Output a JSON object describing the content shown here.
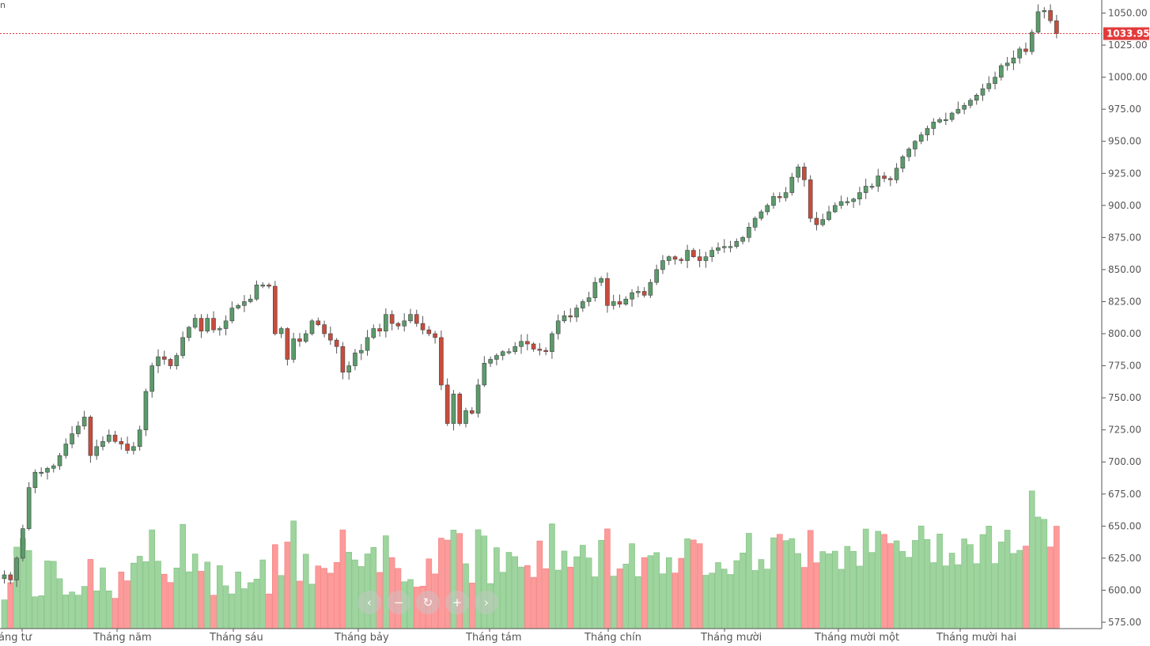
{
  "corner_text": "n",
  "nav_buttons": [
    {
      "name": "scroll-left-button",
      "icon": "chevron-left-icon",
      "glyph": "‹"
    },
    {
      "name": "zoom-out-button",
      "icon": "minus-icon",
      "glyph": "−"
    },
    {
      "name": "reset-button",
      "icon": "refresh-icon",
      "glyph": "↻"
    },
    {
      "name": "zoom-in-button",
      "icon": "plus-icon",
      "glyph": "+"
    },
    {
      "name": "scroll-right-button",
      "icon": "chevron-right-icon",
      "glyph": "›"
    }
  ],
  "chart_data": {
    "type": "candlestick-with-volume",
    "title": "",
    "xlabel": "",
    "ylabel": "",
    "ylim": [
      572,
      1058
    ],
    "y_ticks": [
      "575.00",
      "600.00",
      "625.00",
      "650.00",
      "675.00",
      "700.00",
      "725.00",
      "750.00",
      "775.00",
      "800.00",
      "825.00",
      "850.00",
      "875.00",
      "900.00",
      "925.00",
      "950.00",
      "975.00",
      "1000.00",
      "1025.00",
      "1050.00"
    ],
    "month_labels": [
      "áng tư",
      "Tháng năm",
      "Tháng sáu",
      "Tháng bảy",
      "Tháng tám",
      "Tháng chín",
      "Tháng mười",
      "Tháng mười một",
      "Tháng mười hai"
    ],
    "current_price": 1033.95,
    "colors": {
      "up": "#5b9b6b",
      "down": "#c84c3c",
      "volume_up": "#9ed49e",
      "volume_down": "#fd9a9a",
      "price_line": "#e23b3b",
      "grid_axis": "#555555"
    },
    "closes": [
      612,
      608,
      625,
      648,
      680,
      692,
      692,
      695,
      697,
      705,
      714,
      722,
      728,
      735,
      705,
      712,
      716,
      721,
      716,
      714,
      709,
      712,
      725,
      755,
      775,
      782,
      780,
      775,
      783,
      797,
      805,
      812,
      802,
      812,
      803,
      804,
      810,
      820,
      822,
      825,
      827,
      838,
      838,
      837,
      800,
      804,
      780,
      796,
      794,
      800,
      810,
      807,
      800,
      795,
      790,
      770,
      775,
      785,
      787,
      797,
      804,
      802,
      815,
      808,
      806,
      810,
      815,
      808,
      803,
      800,
      797,
      760,
      730,
      753,
      730,
      740,
      738,
      760,
      777,
      780,
      783,
      786,
      786,
      790,
      794,
      792,
      788,
      787,
      786,
      800,
      810,
      814,
      813,
      820,
      825,
      828,
      840,
      843,
      822,
      825,
      823,
      827,
      832,
      833,
      830,
      840,
      850,
      857,
      860,
      858,
      857,
      865,
      860,
      857,
      860,
      865,
      867,
      868,
      868,
      872,
      875,
      883,
      890,
      895,
      900,
      907,
      906,
      910,
      922,
      930,
      920,
      890,
      885,
      889,
      895,
      900,
      903,
      903,
      905,
      910,
      915,
      915,
      923,
      921,
      920,
      929,
      938,
      944,
      950,
      955,
      960,
      965,
      967,
      967,
      972,
      975,
      978,
      982,
      986,
      991,
      995,
      1000,
      1009,
      1011,
      1015,
      1022,
      1020,
      1035,
      1051,
      1052,
      1044,
      1034
    ]
  }
}
